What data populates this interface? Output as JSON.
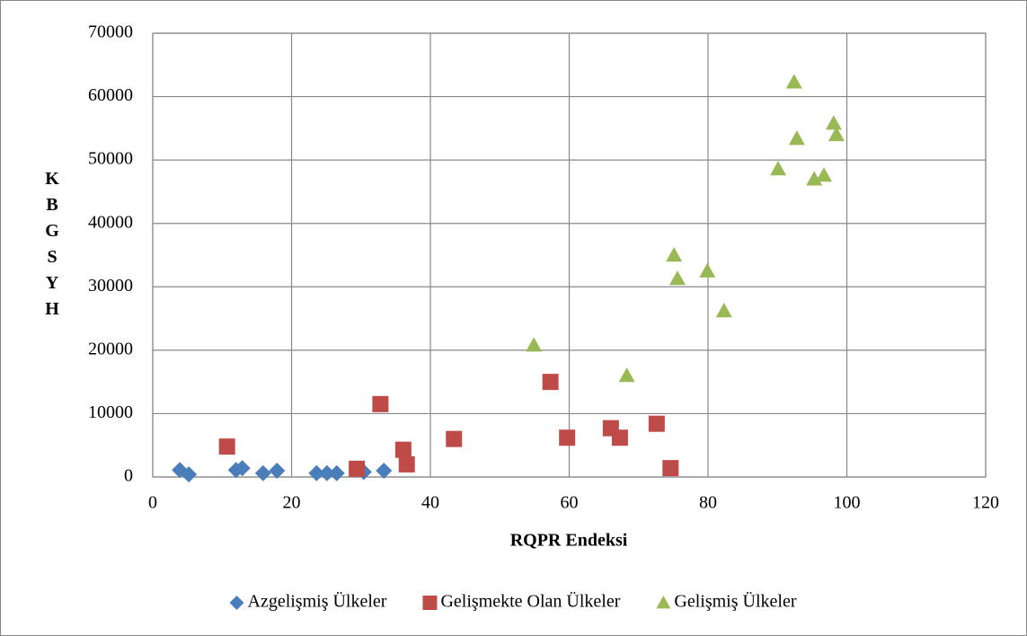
{
  "chart_data": {
    "type": "scatter",
    "x_label": "RQPR Endeksi",
    "y_label": "KBGSYH",
    "xlim": [
      0,
      120
    ],
    "xticks": [
      0,
      20,
      40,
      60,
      80,
      100,
      120
    ],
    "ylim": [
      0,
      70000
    ],
    "yticks": [
      0,
      10000,
      20000,
      30000,
      40000,
      50000,
      60000,
      70000
    ],
    "grid": true,
    "legend": "bottom",
    "series": [
      {
        "name": "Azgelişmiş Ülkeler",
        "color": "#4a7ebb",
        "marker": "diamond",
        "x": [
          3.9,
          5.2,
          12.0,
          12.9,
          15.9,
          17.9,
          23.6,
          25.1,
          26.5,
          30.4,
          33.3
        ],
        "values": [
          1100,
          400,
          1100,
          1400,
          600,
          1000,
          600,
          600,
          600,
          800,
          1000
        ]
      },
      {
        "name": "Gelişmekte Olan Ülkeler",
        "color": "#be4b48",
        "marker": "square",
        "x": [
          10.7,
          29.4,
          32.8,
          36.1,
          36.6,
          43.4,
          57.3,
          59.7,
          66.0,
          67.3,
          72.6,
          74.6
        ],
        "values": [
          4800,
          1300,
          11500,
          4300,
          2000,
          6000,
          15000,
          6200,
          7700,
          6200,
          8400,
          1400
        ]
      },
      {
        "name": "Gelişmiş Ülkeler",
        "color": "#98b954",
        "marker": "triangle",
        "x": [
          54.9,
          68.3,
          75.1,
          75.6,
          79.9,
          82.3,
          90.1,
          92.4,
          92.8,
          95.3,
          96.7,
          98.1,
          98.5
        ],
        "values": [
          20800,
          16000,
          35000,
          31300,
          32500,
          26200,
          48600,
          62300,
          53400,
          47000,
          47600,
          55800,
          54000
        ]
      }
    ]
  }
}
